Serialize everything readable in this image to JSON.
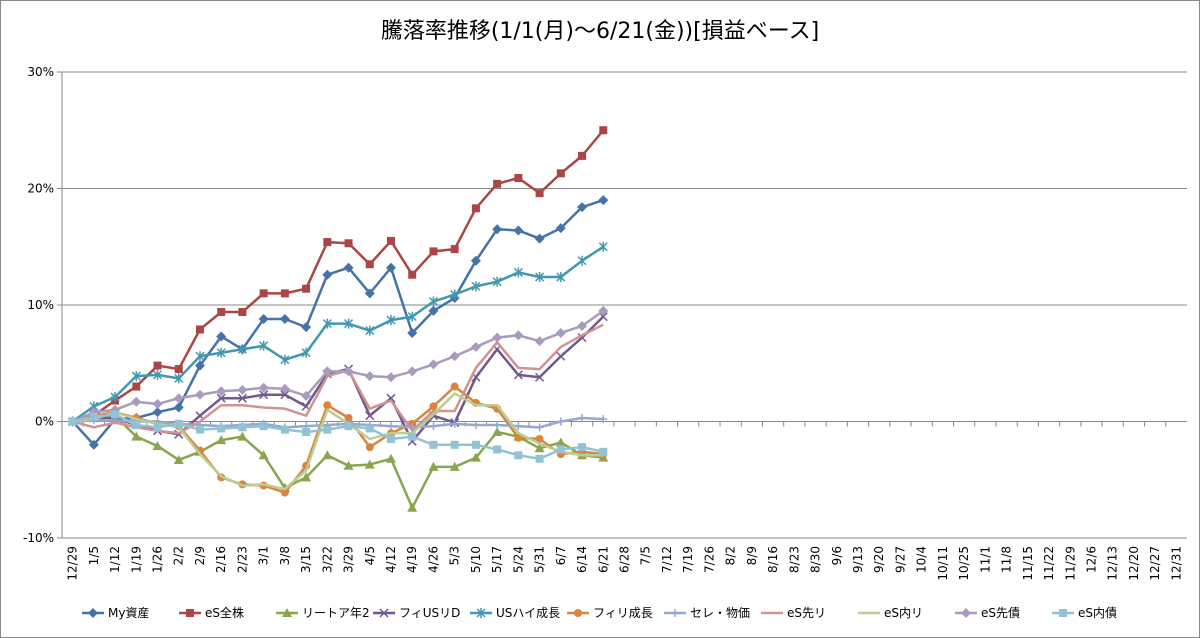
{
  "chart_data": {
    "type": "line",
    "title": "騰落率推移(1/1(月)～6/21(金))[損益ベース]",
    "categories": [
      "12/29",
      "1/5",
      "1/12",
      "1/19",
      "1/26",
      "2/2",
      "2/9",
      "2/16",
      "2/23",
      "3/1",
      "3/8",
      "3/15",
      "3/22",
      "3/29",
      "4/5",
      "4/12",
      "4/19",
      "4/26",
      "5/3",
      "5/10",
      "5/17",
      "5/24",
      "5/31",
      "6/7",
      "6/14",
      "6/21",
      "6/28",
      "7/5",
      "7/12",
      "7/19",
      "7/26",
      "8/2",
      "8/9",
      "8/16",
      "8/23",
      "8/30",
      "9/6",
      "9/13",
      "9/20",
      "9/27",
      "10/4",
      "10/11",
      "10/25",
      "11/1",
      "11/8",
      "11/15",
      "11/22",
      "11/29",
      "12/6",
      "12/13",
      "12/20",
      "12/27",
      "12/31"
    ],
    "ylim": [
      -10,
      30
    ],
    "yticks": [
      {
        "value": -10,
        "label": "-10%"
      },
      {
        "value": 0,
        "label": "0%"
      },
      {
        "value": 10,
        "label": "10%"
      },
      {
        "value": 20,
        "label": "20%"
      },
      {
        "value": 30,
        "label": "30%"
      }
    ],
    "grid": true,
    "legend": "bottom",
    "series": [
      {
        "name": "My資産",
        "color": "#4572A7",
        "marker": "diamond",
        "values": [
          0,
          -2,
          0.2,
          0.3,
          0.8,
          1.2,
          4.8,
          7.3,
          6.2,
          8.8,
          8.8,
          8.1,
          12.6,
          13.2,
          11.0,
          13.2,
          7.6,
          9.5,
          10.6,
          13.8,
          16.5,
          16.4,
          15.7,
          16.6,
          18.4,
          19.0,
          null,
          null,
          null,
          null,
          null,
          null,
          null,
          null,
          null,
          null,
          null,
          null,
          null,
          null,
          null,
          null,
          null,
          null,
          null,
          null,
          null,
          null,
          null,
          null,
          null,
          null,
          null
        ]
      },
      {
        "name": "eS全株",
        "color": "#AA4643",
        "marker": "square",
        "values": [
          0,
          0.5,
          1.8,
          3.0,
          4.8,
          4.5,
          7.9,
          9.4,
          9.4,
          11.0,
          11.0,
          11.4,
          15.4,
          15.3,
          13.5,
          15.5,
          12.6,
          14.6,
          14.8,
          18.3,
          20.4,
          20.9,
          19.6,
          21.3,
          22.8,
          25.0,
          null,
          null,
          null,
          null,
          null,
          null,
          null,
          null,
          null,
          null,
          null,
          null,
          null,
          null,
          null,
          null,
          null,
          null,
          null,
          null,
          null,
          null,
          null,
          null,
          null,
          null,
          null
        ]
      },
      {
        "name": "リートア年2",
        "color": "#89A54E",
        "marker": "triangle",
        "values": [
          0,
          0.3,
          0.5,
          -1.3,
          -2.1,
          -3.3,
          -2.6,
          -1.6,
          -1.3,
          -2.9,
          -5.7,
          -4.8,
          -2.9,
          -3.8,
          -3.7,
          -3.2,
          -7.4,
          -3.9,
          -3.9,
          -3.1,
          -0.9,
          -1.3,
          -2.3,
          -1.8,
          -2.9,
          -3.1,
          null,
          null,
          null,
          null,
          null,
          null,
          null,
          null,
          null,
          null,
          null,
          null,
          null,
          null,
          null,
          null,
          null,
          null,
          null,
          null,
          null,
          null,
          null,
          null,
          null,
          null,
          null
        ]
      },
      {
        "name": "フィUSリD",
        "color": "#71588F",
        "marker": "x",
        "values": [
          0,
          0.3,
          0.3,
          -0.3,
          -0.8,
          -1.1,
          0.5,
          2.0,
          2.0,
          2.3,
          2.3,
          1.3,
          4.1,
          4.5,
          0.5,
          2.0,
          -1.7,
          0.5,
          -0.1,
          3.8,
          6.2,
          4.0,
          3.8,
          5.6,
          7.2,
          9.0,
          null,
          null,
          null,
          null,
          null,
          null,
          null,
          null,
          null,
          null,
          null,
          null,
          null,
          null,
          null,
          null,
          null,
          null,
          null,
          null,
          null,
          null,
          null,
          null,
          null,
          null,
          null
        ]
      },
      {
        "name": "USハイ成長",
        "color": "#4198AF",
        "marker": "star",
        "values": [
          0,
          1.3,
          2.1,
          3.9,
          4.0,
          3.7,
          5.6,
          5.9,
          6.2,
          6.5,
          5.3,
          5.9,
          8.4,
          8.4,
          7.8,
          8.7,
          9.0,
          10.3,
          10.9,
          11.6,
          12.0,
          12.8,
          12.4,
          12.4,
          13.8,
          15.0,
          null,
          null,
          null,
          null,
          null,
          null,
          null,
          null,
          null,
          null,
          null,
          null,
          null,
          null,
          null,
          null,
          null,
          null,
          null,
          null,
          null,
          null,
          null,
          null,
          null,
          null,
          null
        ]
      },
      {
        "name": "フィリ成長",
        "color": "#DB843D",
        "marker": "circle",
        "values": [
          0,
          0.5,
          0.8,
          0.3,
          -0.2,
          -0.4,
          -2.5,
          -4.8,
          -5.4,
          -5.5,
          -6.1,
          -3.8,
          1.4,
          0.3,
          -2.2,
          -1.0,
          -0.2,
          1.3,
          3.0,
          1.6,
          1.1,
          -1.4,
          -1.5,
          -2.8,
          -2.6,
          -2.8,
          null,
          null,
          null,
          null,
          null,
          null,
          null,
          null,
          null,
          null,
          null,
          null,
          null,
          null,
          null,
          null,
          null,
          null,
          null,
          null,
          null,
          null,
          null,
          null,
          null,
          null,
          null
        ]
      },
      {
        "name": "セレ・物価",
        "color": "#93A9CF",
        "marker": "plus",
        "values": [
          0,
          0.1,
          0.1,
          0,
          0,
          -0.2,
          -0.3,
          -0.4,
          -0.3,
          -0.2,
          -0.5,
          -0.4,
          -0.3,
          -0.2,
          -0.3,
          -0.4,
          -0.5,
          -0.4,
          -0.2,
          -0.3,
          -0.3,
          -0.4,
          -0.5,
          0,
          0.3,
          0.2,
          null,
          null,
          null,
          null,
          null,
          null,
          null,
          null,
          null,
          null,
          null,
          null,
          null,
          null,
          null,
          null,
          null,
          null,
          null,
          null,
          null,
          null,
          null,
          null,
          null,
          null,
          null
        ]
      },
      {
        "name": "eS先リ",
        "color": "#D19392",
        "marker": "none",
        "values": [
          0,
          -0.5,
          -0.1,
          -0.5,
          -0.8,
          -1.0,
          0,
          1.4,
          1.4,
          1.2,
          1.1,
          0.5,
          3.9,
          4.4,
          1.1,
          1.8,
          -0.8,
          0.9,
          0.9,
          4.6,
          6.8,
          4.6,
          4.5,
          6.4,
          7.4,
          8.3,
          null,
          null,
          null,
          null,
          null,
          null,
          null,
          null,
          null,
          null,
          null,
          null,
          null,
          null,
          null,
          null,
          null,
          null,
          null,
          null,
          null,
          null,
          null,
          null,
          null,
          null,
          null
        ]
      },
      {
        "name": "eS内リ",
        "color": "#B9CD96",
        "marker": "none",
        "values": [
          0,
          0.2,
          0.8,
          0.2,
          -0.2,
          -0.5,
          -2.8,
          -4.7,
          -5.5,
          -5.4,
          -5.8,
          -4.2,
          1.0,
          -0.2,
          -1.5,
          -1.0,
          -1.0,
          0.6,
          2.4,
          1.4,
          1.4,
          -1.0,
          -1.9,
          -2.6,
          -2.9,
          -2.9,
          null,
          null,
          null,
          null,
          null,
          null,
          null,
          null,
          null,
          null,
          null,
          null,
          null,
          null,
          null,
          null,
          null,
          null,
          null,
          null,
          null,
          null,
          null,
          null,
          null,
          null,
          null
        ]
      },
      {
        "name": "eS先債",
        "color": "#A99BBD",
        "marker": "diamond",
        "values": [
          0,
          0.8,
          1.0,
          1.7,
          1.5,
          2.0,
          2.3,
          2.6,
          2.7,
          2.9,
          2.8,
          2.2,
          4.3,
          4.3,
          3.9,
          3.8,
          4.3,
          4.9,
          5.6,
          6.4,
          7.2,
          7.4,
          6.9,
          7.6,
          8.2,
          9.5,
          null,
          null,
          null,
          null,
          null,
          null,
          null,
          null,
          null,
          null,
          null,
          null,
          null,
          null,
          null,
          null,
          null,
          null,
          null,
          null,
          null,
          null,
          null,
          null,
          null,
          null,
          null
        ]
      },
      {
        "name": "eS内債",
        "color": "#91C3D5",
        "marker": "square",
        "values": [
          0,
          0.4,
          0.6,
          -0.3,
          -0.5,
          -0.2,
          -0.7,
          -0.6,
          -0.5,
          -0.4,
          -0.7,
          -0.9,
          -0.7,
          -0.4,
          -0.6,
          -1.5,
          -1.3,
          -2.0,
          -2.0,
          -2.0,
          -2.4,
          -2.9,
          -3.2,
          -2.4,
          -2.2,
          -2.6,
          null,
          null,
          null,
          null,
          null,
          null,
          null,
          null,
          null,
          null,
          null,
          null,
          null,
          null,
          null,
          null,
          null,
          null,
          null,
          null,
          null,
          null,
          null,
          null,
          null,
          null,
          null
        ]
      }
    ]
  }
}
